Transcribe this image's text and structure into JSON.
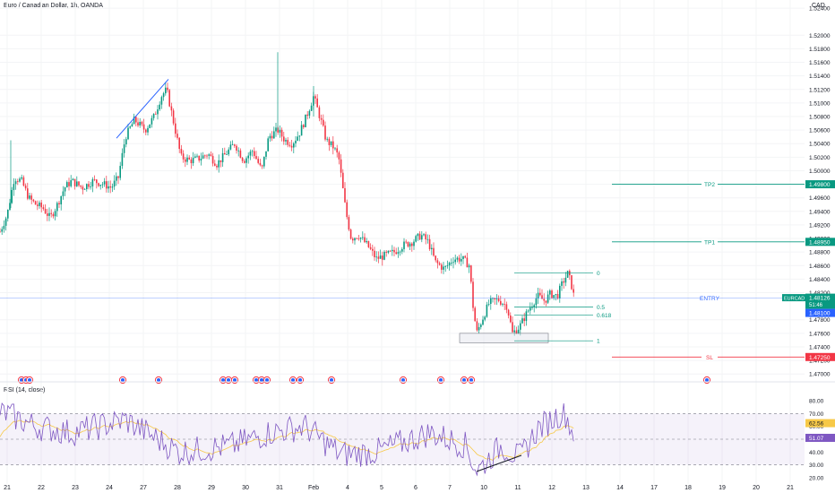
{
  "header": {
    "symbol_title": "Euro / Canadian Dollar, 1h, OANDA",
    "currency": "CAD"
  },
  "rsi": {
    "title": "RSI (14, close)",
    "value_label": "62.56",
    "ma_label": "51.07",
    "levels": {
      "upper": 70,
      "middle": 50,
      "lower": 30
    },
    "ticks": [
      "80.00",
      "70.00",
      "60.00",
      "40.00",
      "30.00",
      "20.00"
    ]
  },
  "chart_data": {
    "type": "candlestick",
    "x_ticks": [
      "21",
      "22",
      "23",
      "24",
      "27",
      "28",
      "29",
      "30",
      "31",
      "Feb",
      "4",
      "5",
      "6",
      "7",
      "10",
      "11",
      "12",
      "13",
      "14",
      "17",
      "18",
      "19",
      "20",
      "21"
    ],
    "y_ticks": [
      "1.52400",
      "1.52000",
      "1.51800",
      "1.51600",
      "1.51400",
      "1.51200",
      "1.51000",
      "1.50800",
      "1.50600",
      "1.50400",
      "1.50200",
      "1.50000",
      "1.49800",
      "1.49600",
      "1.49400",
      "1.49200",
      "1.49000",
      "1.48800",
      "1.48600",
      "1.48400",
      "1.48200",
      "1.47800",
      "1.47600",
      "1.47400",
      "1.47200",
      "1.47000"
    ],
    "ylim": [
      1.4691,
      1.5252
    ],
    "price_labels": {
      "symbol": "EURCAD",
      "last": "1.48126",
      "countdown": "51:46",
      "bid": "1.48100"
    },
    "levels": [
      {
        "name": "TP2",
        "price": 1.498,
        "label": "1.49800",
        "color": "#089981"
      },
      {
        "name": "TP1",
        "price": 1.4895,
        "label": "1.48950",
        "color": "#089981"
      },
      {
        "name": "ENTRY",
        "price": 1.4812,
        "label": "",
        "color": "#2962ff"
      },
      {
        "name": "SL",
        "price": 1.4725,
        "label": "1.47250",
        "color": "#f23645"
      }
    ],
    "fib_levels": [
      {
        "label": "0",
        "price": 1.4849
      },
      {
        "label": "0.5",
        "price": 1.4799
      },
      {
        "label": "0.618",
        "price": 1.4787
      },
      {
        "label": "1",
        "price": 1.4749
      }
    ],
    "annotations": [
      "Trendline above late-January rally",
      "Demand zone box near 1.4750",
      "Bullish RSI divergence trendline"
    ],
    "colors": {
      "up": "#089981",
      "down": "#f23645",
      "rsi_line": "#7e57c2",
      "rsi_ma": "#f7c948"
    }
  }
}
